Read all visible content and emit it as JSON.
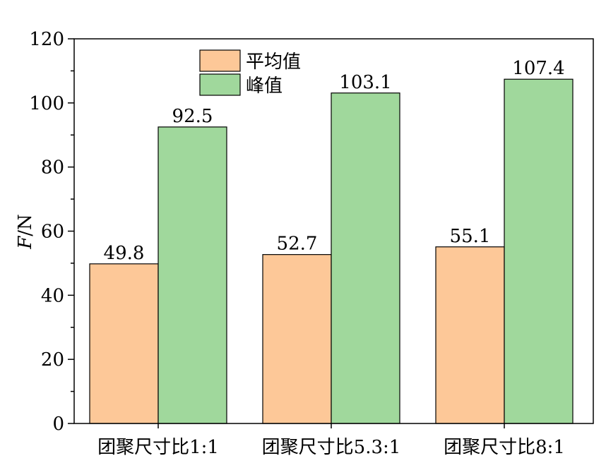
{
  "chart_data": {
    "type": "bar",
    "categories": [
      "团聚尺寸比1:1",
      "团聚尺寸比5.3:1",
      "团聚尺寸比8:1"
    ],
    "series": [
      {
        "name": "平均值",
        "values": [
          49.8,
          52.7,
          55.1
        ],
        "color": "#fdc898"
      },
      {
        "name": "峰值",
        "values": [
          92.5,
          103.1,
          107.4
        ],
        "color": "#a0d89c"
      }
    ],
    "value_labels": [
      [
        "49.8",
        "52.7",
        "55.1"
      ],
      [
        "92.5",
        "103.1",
        "107.4"
      ]
    ],
    "ylabel": "F/N",
    "ylabel_italic": "F",
    "ylabel_rest": "/N",
    "ylim": [
      0,
      120
    ],
    "yticks": [
      0,
      20,
      40,
      60,
      80,
      100,
      120
    ],
    "ytick_labels": [
      "0",
      "20",
      "40",
      "60",
      "80",
      "100",
      "120"
    ],
    "grid": false,
    "legend_position": "top-left"
  }
}
